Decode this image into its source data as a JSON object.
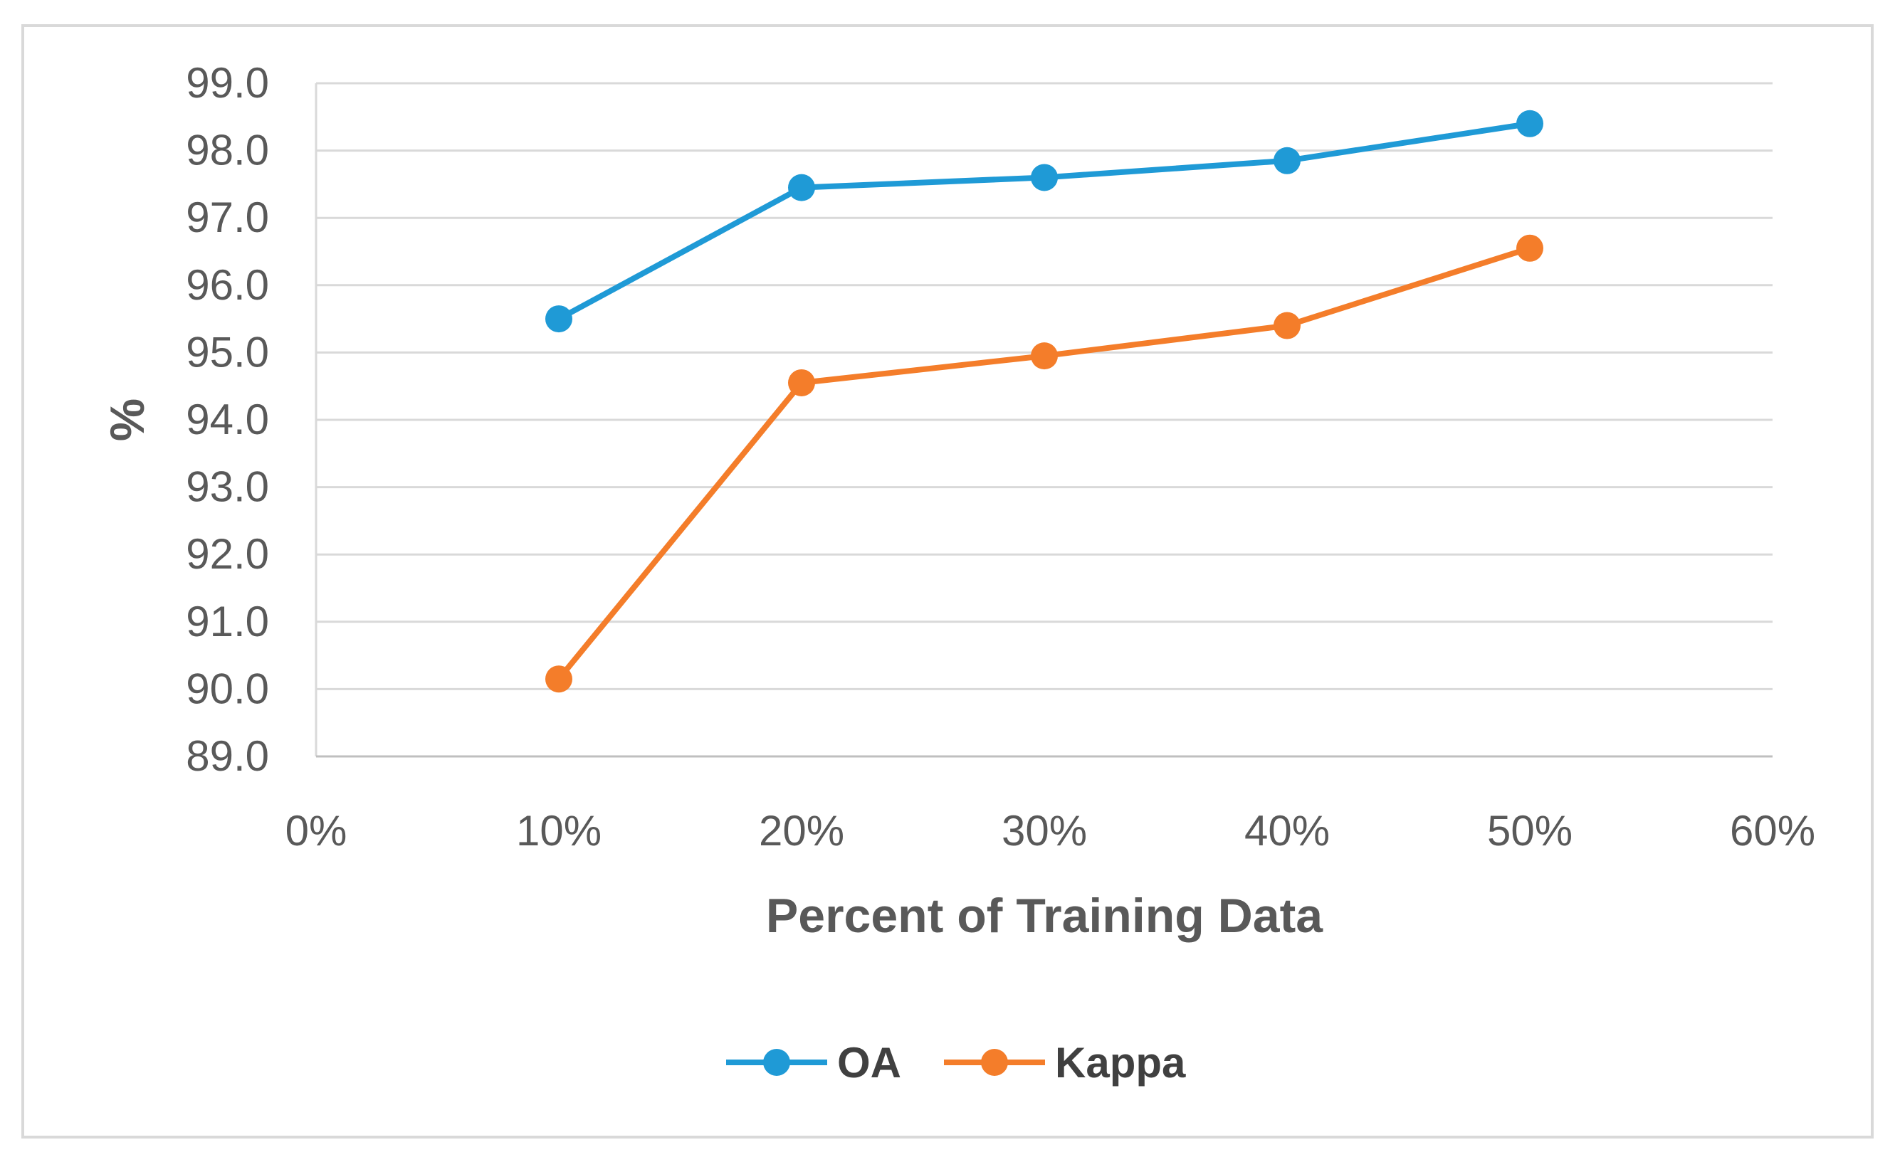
{
  "chart_data": {
    "type": "line",
    "title": "",
    "xlabel": "Percent of Training Data",
    "ylabel": "%",
    "x_ticks": [
      "0%",
      "10%",
      "20%",
      "30%",
      "40%",
      "50%",
      "60%"
    ],
    "y_ticks": [
      "89.0",
      "90.0",
      "91.0",
      "92.0",
      "93.0",
      "94.0",
      "95.0",
      "96.0",
      "97.0",
      "98.0",
      "99.0"
    ],
    "xlim": [
      0,
      60
    ],
    "ylim": [
      89,
      99
    ],
    "grid": "horizontal",
    "legend_position": "bottom",
    "x": [
      10,
      20,
      30,
      40,
      50
    ],
    "series": [
      {
        "name": "OA",
        "color": "#1f9ad6",
        "values": [
          95.5,
          97.45,
          97.6,
          97.85,
          98.4
        ]
      },
      {
        "name": "Kappa",
        "color": "#f47d2a",
        "values": [
          90.15,
          94.55,
          94.95,
          95.4,
          96.55
        ]
      }
    ]
  }
}
